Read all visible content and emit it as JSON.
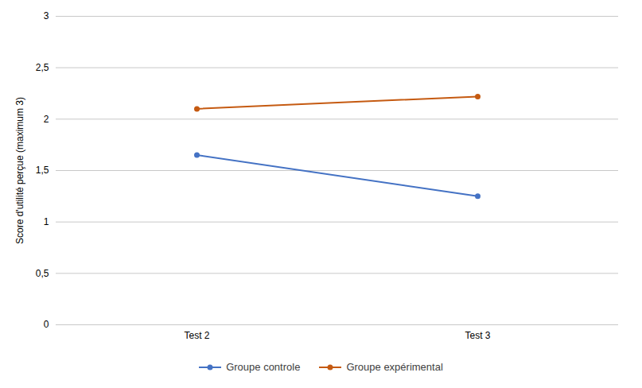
{
  "chart_data": {
    "type": "line",
    "categories": [
      "Test 2",
      "Test 3"
    ],
    "series": [
      {
        "name": "Groupe controle",
        "color": "#4472C4",
        "values": [
          1.65,
          1.25
        ]
      },
      {
        "name": "Groupe expérimental",
        "color": "#C55A11",
        "values": [
          2.1,
          2.22
        ]
      }
    ],
    "ylabel": "Score d'utilité perçue (maximum 3)",
    "ylim": [
      0,
      3
    ],
    "yticks": [
      0,
      {
        "value": 0.5,
        "label": "0,5"
      },
      1,
      {
        "value": 1.5,
        "label": "1,5"
      },
      2,
      {
        "value": 2.5,
        "label": "2,5"
      },
      3
    ],
    "grid": true,
    "legend": "bottom",
    "marker": "circle"
  }
}
